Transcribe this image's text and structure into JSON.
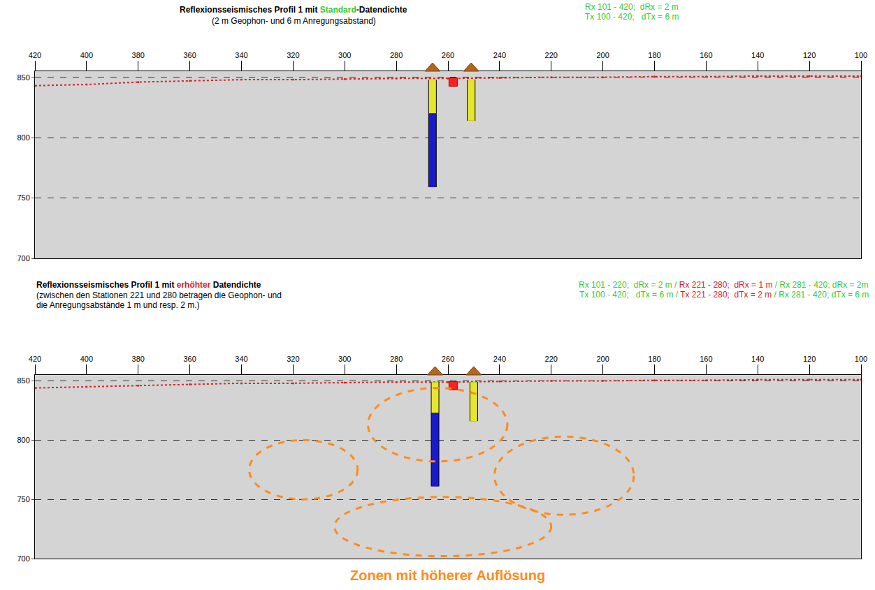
{
  "chart_data": [
    {
      "type": "section",
      "title_parts": [
        {
          "text": "Reflexionsseismisches Profil 1 mit ",
          "color": "#000000"
        },
        {
          "text": "Standard",
          "color": "#33cc33"
        },
        {
          "text": "-Datendichte",
          "color": "#000000"
        }
      ],
      "subtitle": [
        "(2 m Geophon- und 6 m Anregungsabstand)"
      ],
      "parameters": [
        [
          {
            "text": "Rx 101 - 420;  dRx = 2 m",
            "color": "#33cc33"
          }
        ],
        [
          {
            "text": "Tx 100 - 420;   dTx = 6 m",
            "color": "#33cc33"
          }
        ]
      ],
      "xlim": [
        420,
        100
      ],
      "xticks": [
        420,
        400,
        380,
        360,
        340,
        320,
        300,
        280,
        260,
        240,
        220,
        200,
        180,
        160,
        140,
        120,
        100
      ],
      "ylim": [
        700,
        855
      ],
      "yticks": [
        700,
        750,
        800,
        850
      ],
      "grid": true,
      "surface": {
        "color": "#e02020",
        "x": [
          420,
          400,
          380,
          360,
          340,
          320,
          300,
          280,
          260,
          240,
          220,
          200,
          180,
          160,
          140,
          120,
          100
        ],
        "values": [
          843,
          844,
          846,
          847,
          848,
          848,
          848.5,
          849,
          849,
          849.5,
          850,
          850,
          850.5,
          850.5,
          851,
          851,
          851
        ]
      },
      "boreholes": [
        {
          "x": 266,
          "segments": [
            {
              "top": 848,
              "bottom": 820,
              "color": "#e6e62e"
            },
            {
              "top": 820,
              "bottom": 759,
              "color": "#1a1acc"
            }
          ]
        },
        {
          "x": 251,
          "segments": [
            {
              "top": 848,
              "bottom": 814,
              "color": "#e6e62e"
            }
          ]
        }
      ],
      "source_point": {
        "x": 258,
        "y": 846,
        "color": "#ff2020"
      },
      "zones": []
    },
    {
      "type": "section",
      "title_parts": [
        {
          "text": "Reflexionsseismisches Profil 1 mit ",
          "color": "#000000"
        },
        {
          "text": "erhöhter",
          "color": "#e02020"
        },
        {
          "text": " Datendichte",
          "color": "#000000"
        }
      ],
      "subtitle": [
        "(zwischen den Stationen 221 und 280 betragen die Geophon- und",
        "die Anregungsabstände 1 m und resp. 2 m.)"
      ],
      "parameters": [
        [
          {
            "text": "Rx 101 - 220;  dRx = 2 m / ",
            "color": "#33cc33"
          },
          {
            "text": "Rx 221 - 280;  dRx = 1 m",
            "color": "#e02020"
          },
          {
            "text": " / Rx 281 - 420; dRx = 2m",
            "color": "#33cc33"
          }
        ],
        [
          {
            "text": "Tx 100 - 420;   dTx = 6 m / ",
            "color": "#33cc33"
          },
          {
            "text": "Tx 221 - 280;  dTx = 2 m",
            "color": "#e02020"
          },
          {
            "text": " / Rx 281 - 420; dTx = 6 m",
            "color": "#33cc33"
          }
        ]
      ],
      "xlim": [
        420,
        100
      ],
      "xticks": [
        420,
        400,
        380,
        360,
        340,
        320,
        300,
        280,
        260,
        240,
        220,
        200,
        180,
        160,
        140,
        120,
        100
      ],
      "ylim": [
        700,
        855
      ],
      "yticks": [
        700,
        750,
        800,
        850
      ],
      "grid": true,
      "surface": {
        "color": "#e02020",
        "x": [
          420,
          400,
          380,
          360,
          340,
          320,
          300,
          280,
          260,
          240,
          220,
          200,
          180,
          160,
          140,
          120,
          100
        ],
        "values": [
          844,
          845,
          846,
          847,
          848,
          848,
          848.5,
          849,
          849,
          849.5,
          850,
          850,
          850.5,
          850.5,
          851,
          851,
          851
        ]
      },
      "boreholes": [
        {
          "x": 265,
          "segments": [
            {
              "top": 849,
              "bottom": 823,
              "color": "#e6e62e"
            },
            {
              "top": 823,
              "bottom": 761,
              "color": "#1a1acc"
            }
          ]
        },
        {
          "x": 250,
          "segments": [
            {
              "top": 849,
              "bottom": 816,
              "color": "#e6e62e"
            }
          ]
        }
      ],
      "source_point": {
        "x": 258,
        "y": 846,
        "color": "#ff2020"
      },
      "zones": [
        {
          "x": 316,
          "y": 775,
          "rx": 21,
          "ry": 25
        },
        {
          "x": 264,
          "y": 813,
          "rx": 27,
          "ry": 31
        },
        {
          "x": 215,
          "y": 770,
          "rx": 27,
          "ry": 33
        },
        {
          "x": 262,
          "y": 727,
          "rx": 42,
          "ry": 25
        }
      ],
      "zone_color": "#ff8c1a",
      "annotation": "Zonen mit höherer Auflösung"
    }
  ]
}
